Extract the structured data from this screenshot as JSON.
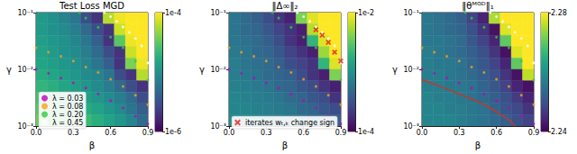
{
  "chart_data": [
    {
      "type": "heatmap",
      "title": "Test Loss MGD",
      "x_label": "β",
      "y_label": "γ",
      "xlim": [
        0,
        0.9
      ],
      "xticks": [
        {
          "value": 0,
          "label": "0.0"
        },
        0.3,
        0.6,
        0.9
      ],
      "ylim": [
        0.001,
        0.1
      ],
      "yticks": [
        {
          "value": 0.001,
          "label": "10⁻³"
        },
        {
          "value": 0.01,
          "label": "10⁻²"
        },
        {
          "value": 0.1,
          "label": "10⁻¹"
        }
      ],
      "log": "y",
      "cells": [
        [
          1.2e-05,
          1e-05,
          8e-06,
          6e-06,
          3e-06,
          2e-06,
          6e-05,
          9e-05,
          0.0001,
          0.0001
        ],
        [
          1.2e-05,
          1e-05,
          9e-06,
          7e-06,
          5e-06,
          3e-06,
          2e-06,
          7e-05,
          0.0001,
          0.0001
        ],
        [
          1.3e-05,
          1.1e-05,
          1e-05,
          8e-06,
          6e-06,
          4e-06,
          2e-06,
          3e-05,
          9e-05,
          0.0001
        ],
        [
          1.4e-05,
          1.2e-05,
          1e-05,
          9e-06,
          7e-06,
          5e-06,
          3e-06,
          2e-06,
          7e-05,
          0.0001
        ],
        [
          1.5e-05,
          1.3e-05,
          1.1e-05,
          1e-05,
          8e-06,
          6e-06,
          4e-06,
          2e-06,
          4e-05,
          9e-05
        ],
        [
          1.7e-05,
          1.5e-05,
          1.3e-05,
          1.1e-05,
          9e-06,
          8e-06,
          6e-06,
          3e-06,
          2e-06,
          6e-05
        ],
        [
          2e-05,
          1.8e-05,
          1.5e-05,
          1.3e-05,
          1.1e-05,
          9e-06,
          7e-06,
          5e-06,
          3e-06,
          2e-06
        ],
        [
          2.5e-05,
          2.2e-05,
          1.9e-05,
          1.6e-05,
          1.3e-05,
          1.1e-05,
          9e-06,
          7e-06,
          5e-06,
          3e-06
        ],
        [
          3e-05,
          2.8e-05,
          2.4e-05,
          2e-05,
          1.7e-05,
          1.4e-05,
          1.1e-05,
          9e-06,
          6e-06,
          4e-06
        ],
        [
          3.5e-05,
          3.2e-05,
          3e-05,
          2.6e-05,
          2.2e-05,
          1.8e-05,
          1.4e-05,
          1.1e-05,
          8e-06,
          5e-06
        ]
      ],
      "colorbar": {
        "lim": [
          1e-06,
          0.0001
        ],
        "ticks": [
          {
            "value": 1e-06,
            "label": "1e-6"
          },
          {
            "value": 0.0001,
            "label": "1e-4"
          }
        ],
        "log": true
      },
      "legend": "lower left",
      "series": [
        {
          "name": "λ = 0.03",
          "type": "scatter",
          "marker": "circle",
          "color": "#c000c0",
          "x": [
            0,
            0.1,
            0.2,
            0.3,
            0.4,
            0.5,
            0.6,
            0.7,
            0.8,
            0.9
          ],
          "values": [
            0.01,
            0.0085,
            0.007,
            0.0058,
            0.0047,
            0.0037,
            0.0028,
            0.0021,
            0.0015,
            0.0011
          ]
        },
        {
          "name": "λ = 0.08",
          "type": "scatter",
          "marker": "circle",
          "color": "#ff9f1c",
          "x": [
            0,
            0.1,
            0.2,
            0.3,
            0.4,
            0.5,
            0.6,
            0.7,
            0.8,
            0.9
          ],
          "values": [
            0.024,
            0.02,
            0.017,
            0.014,
            0.011,
            0.0088,
            0.0067,
            0.005,
            0.0035,
            0.0024
          ]
        },
        {
          "name": "λ = 0.20",
          "type": "scatter",
          "marker": "circle",
          "color": "#2ecc40",
          "x": [
            0.35,
            0.4,
            0.5,
            0.6,
            0.7,
            0.8,
            0.9
          ],
          "values": [
            0.1,
            0.08,
            0.055,
            0.037,
            0.024,
            0.014,
            0.0065
          ]
        },
        {
          "name": "λ = 0.45",
          "type": "scatter",
          "marker": "circle",
          "color": "#ffffff",
          "x": [
            0.55,
            0.6,
            0.65,
            0.7,
            0.75,
            0.8,
            0.85,
            0.9
          ],
          "values": [
            0.1,
            0.085,
            0.07,
            0.056,
            0.045,
            0.035,
            0.026,
            0.013
          ]
        }
      ]
    },
    {
      "type": "heatmap",
      "title": "‖Δ∞‖₂",
      "x_label": "β",
      "y_label": "γ",
      "xlim": [
        0,
        0.9
      ],
      "xticks": [
        {
          "value": 0,
          "label": "0.0"
        },
        0.3,
        0.6,
        0.9
      ],
      "ylim": [
        0.001,
        0.1
      ],
      "yticks": [
        {
          "value": 0.001,
          "label": "10⁻³"
        },
        {
          "value": 0.01,
          "label": "10⁻²"
        },
        {
          "value": 0.1,
          "label": "10⁻¹"
        }
      ],
      "log": "y",
      "cells": [
        [
          0.0006,
          0.0005,
          0.0004,
          0.0003,
          0.0002,
          0.00015,
          0.004,
          0.008,
          0.01,
          0.01
        ],
        [
          0.0006,
          0.0005,
          0.00045,
          0.00035,
          0.00025,
          0.0002,
          0.00015,
          0.006,
          0.01,
          0.01
        ],
        [
          0.0006,
          0.00055,
          0.0005,
          0.0004,
          0.0003,
          0.0002,
          0.00015,
          0.002,
          0.008,
          0.01
        ],
        [
          0.00065,
          0.0006,
          0.0005,
          0.00045,
          0.00035,
          0.00025,
          0.0002,
          0.00015,
          0.005,
          0.01
        ],
        [
          0.0007,
          0.0006,
          0.00055,
          0.0005,
          0.0004,
          0.0003,
          0.00025,
          0.0002,
          0.002,
          0.008
        ],
        [
          0.0007,
          0.00065,
          0.0006,
          0.0005,
          0.00045,
          0.0004,
          0.0003,
          0.0002,
          0.00015,
          0.004
        ],
        [
          0.00075,
          0.0007,
          0.00065,
          0.0006,
          0.0005,
          0.00045,
          0.00035,
          0.0003,
          0.0002,
          0.00015
        ],
        [
          0.0008,
          0.00075,
          0.0007,
          0.00065,
          0.0006,
          0.0005,
          0.00045,
          0.00035,
          0.0003,
          0.0002
        ],
        [
          0.0008,
          0.0008,
          0.00075,
          0.0007,
          0.00065,
          0.0006,
          0.0005,
          0.00045,
          0.00035,
          0.0003
        ],
        [
          0.00085,
          0.0008,
          0.0008,
          0.00075,
          0.0007,
          0.00065,
          0.0006,
          0.0005,
          0.00045,
          0.0004
        ]
      ],
      "colorbar": {
        "lim": [
          0.0001,
          0.01
        ],
        "ticks": [
          {
            "value": 0.0001,
            "label": "1e-4"
          },
          {
            "value": 0.01,
            "label": "1e-2"
          }
        ],
        "log": true
      },
      "legend": "lower left",
      "series": [
        {
          "type": "scatter",
          "marker": "circle",
          "color": "#c000c0",
          "x": [
            0,
            0.1,
            0.2,
            0.3,
            0.4,
            0.5,
            0.6,
            0.7,
            0.8,
            0.9
          ],
          "values": [
            0.01,
            0.0085,
            0.007,
            0.0058,
            0.0047,
            0.0037,
            0.0028,
            0.0021,
            0.0015,
            0.0011
          ]
        },
        {
          "type": "scatter",
          "marker": "circle",
          "color": "#ff9f1c",
          "x": [
            0,
            0.1,
            0.2,
            0.3,
            0.4,
            0.5,
            0.6,
            0.7,
            0.8,
            0.9
          ],
          "values": [
            0.024,
            0.02,
            0.017,
            0.014,
            0.011,
            0.0088,
            0.0067,
            0.005,
            0.0035,
            0.0024
          ]
        },
        {
          "type": "scatter",
          "marker": "circle",
          "color": "#2ecc40",
          "x": [
            0.35,
            0.4,
            0.5,
            0.6,
            0.7,
            0.8,
            0.9
          ],
          "values": [
            0.1,
            0.08,
            0.055,
            0.037,
            0.024,
            0.014,
            0.0065
          ]
        },
        {
          "type": "scatter",
          "marker": "circle",
          "color": "#ffffff",
          "x": [
            0.55,
            0.6,
            0.65,
            0.7,
            0.75,
            0.8,
            0.85,
            0.9
          ],
          "values": [
            0.1,
            0.085,
            0.07,
            0.056,
            0.045,
            0.035,
            0.026,
            0.013
          ]
        },
        {
          "name": "iterates wₜ,ₖ change sign",
          "type": "scatter",
          "marker": "x",
          "color": "#e02020",
          "x": [
            0.7,
            0.75,
            0.8,
            0.85,
            0.9
          ],
          "values": [
            0.05,
            0.04,
            0.03,
            0.02,
            0.014
          ]
        }
      ]
    },
    {
      "type": "heatmap",
      "title": "‖θᴹᴳᴰ‖₁",
      "x_label": "β",
      "y_label": "γ",
      "xlim": [
        0,
        0.9
      ],
      "xticks": [
        {
          "value": 0,
          "label": "0.0"
        },
        0.3,
        0.6,
        0.9
      ],
      "ylim": [
        0.001,
        0.1
      ],
      "yticks": [
        {
          "value": 0.001,
          "label": "10⁻³"
        },
        {
          "value": 0.01,
          "label": "10⁻²"
        },
        {
          "value": 0.1,
          "label": "10⁻¹"
        }
      ],
      "log": "y",
      "cells": [
        [
          2.256,
          2.255,
          2.254,
          2.252,
          2.248,
          2.244,
          2.275,
          2.28,
          2.28,
          2.28
        ],
        [
          2.256,
          2.255,
          2.254,
          2.253,
          2.25,
          2.246,
          2.242,
          2.278,
          2.28,
          2.28
        ],
        [
          2.256,
          2.256,
          2.255,
          2.254,
          2.251,
          2.248,
          2.244,
          2.27,
          2.28,
          2.28
        ],
        [
          2.257,
          2.256,
          2.255,
          2.254,
          2.252,
          2.25,
          2.246,
          2.242,
          2.278,
          2.28
        ],
        [
          2.257,
          2.256,
          2.256,
          2.255,
          2.253,
          2.251,
          2.248,
          2.244,
          2.27,
          2.28
        ],
        [
          2.257,
          2.257,
          2.256,
          2.255,
          2.254,
          2.252,
          2.25,
          2.246,
          2.242,
          2.276
        ],
        [
          2.257,
          2.257,
          2.256,
          2.256,
          2.255,
          2.253,
          2.251,
          2.248,
          2.244,
          2.242
        ],
        [
          2.258,
          2.257,
          2.257,
          2.256,
          2.255,
          2.254,
          2.252,
          2.25,
          2.247,
          2.244
        ],
        [
          2.258,
          2.258,
          2.257,
          2.257,
          2.256,
          2.255,
          2.253,
          2.251,
          2.249,
          2.246
        ],
        [
          2.258,
          2.258,
          2.258,
          2.257,
          2.256,
          2.255,
          2.254,
          2.252,
          2.25,
          2.248
        ]
      ],
      "colorbar": {
        "lim": [
          2.24,
          2.28
        ],
        "ticks": [
          2.24,
          2.28
        ],
        "log": false
      },
      "series": [
        {
          "type": "scatter",
          "marker": "circle",
          "color": "#c000c0",
          "x": [
            0,
            0.1,
            0.2,
            0.3,
            0.4,
            0.5,
            0.6,
            0.7,
            0.8,
            0.9
          ],
          "values": [
            0.01,
            0.0085,
            0.007,
            0.0058,
            0.0047,
            0.0037,
            0.0028,
            0.0021,
            0.0015,
            0.0011
          ]
        },
        {
          "type": "scatter",
          "marker": "circle",
          "color": "#ff9f1c",
          "x": [
            0,
            0.1,
            0.2,
            0.3,
            0.4,
            0.5,
            0.6,
            0.7,
            0.8,
            0.9
          ],
          "values": [
            0.024,
            0.02,
            0.017,
            0.014,
            0.011,
            0.0088,
            0.0067,
            0.005,
            0.0035,
            0.0024
          ]
        },
        {
          "type": "scatter",
          "marker": "circle",
          "color": "#2ecc40",
          "x": [
            0.35,
            0.4,
            0.5,
            0.6,
            0.7,
            0.8,
            0.9
          ],
          "values": [
            0.1,
            0.08,
            0.055,
            0.037,
            0.024,
            0.014,
            0.0065
          ]
        },
        {
          "type": "scatter",
          "marker": "circle",
          "color": "#ffffff",
          "x": [
            0.55,
            0.6,
            0.65,
            0.7,
            0.75,
            0.8,
            0.85,
            0.9
          ],
          "values": [
            0.1,
            0.085,
            0.07,
            0.056,
            0.045,
            0.035,
            0.026,
            0.013
          ]
        },
        {
          "type": "line",
          "line_style": "solid",
          "color": "#c0392b",
          "x": [
            0,
            0.1,
            0.2,
            0.3,
            0.4,
            0.5,
            0.6,
            0.7,
            0.75
          ],
          "values": [
            0.0066,
            0.0055,
            0.0045,
            0.0037,
            0.003,
            0.0024,
            0.0018,
            0.0013,
            0.001
          ]
        }
      ]
    }
  ]
}
